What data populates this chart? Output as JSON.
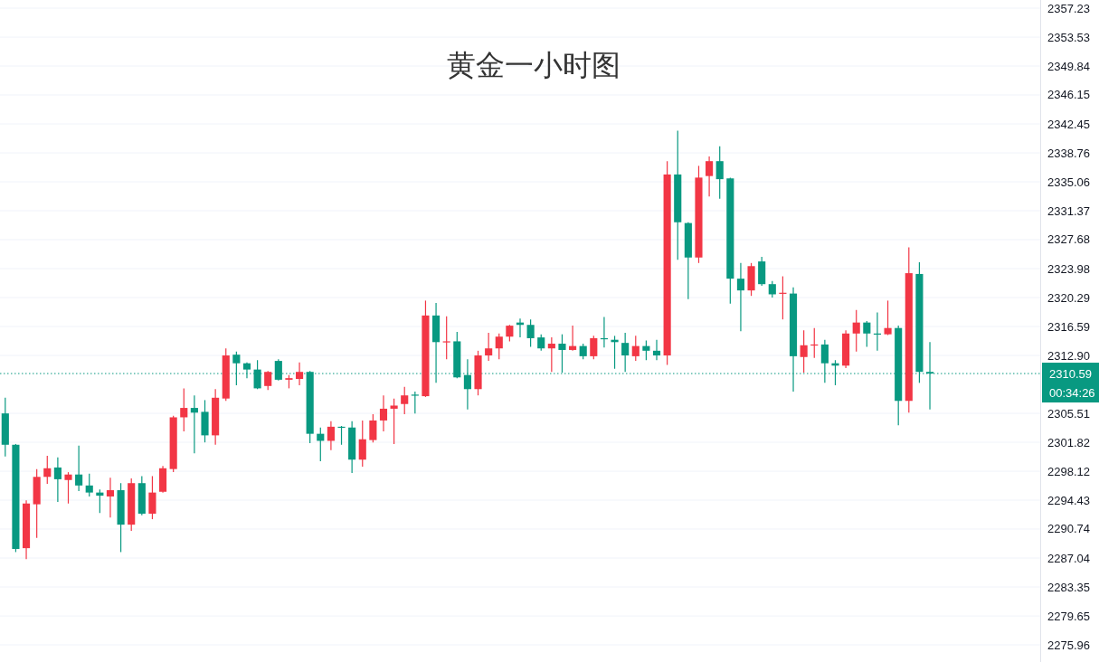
{
  "chart_data": {
    "type": "candlestick",
    "title": "黄金一小时图",
    "categories": [
      null,
      null,
      null,
      null,
      null,
      null,
      null,
      null,
      null,
      null,
      null,
      null,
      null,
      null,
      null,
      null,
      null,
      null,
      null,
      null,
      null,
      null,
      null,
      null,
      null,
      null,
      null,
      null,
      null,
      null,
      null,
      null,
      null,
      null,
      null,
      null,
      null,
      null,
      null,
      null,
      null,
      null,
      null,
      null,
      null,
      null,
      null,
      null,
      null,
      null,
      null,
      null,
      null,
      null,
      null,
      null,
      null,
      null,
      null,
      null,
      null,
      null,
      null,
      null,
      null,
      null,
      null,
      null,
      null,
      null,
      null,
      null,
      null,
      null,
      null,
      null,
      null,
      null,
      null,
      null,
      null,
      null,
      null,
      null,
      null,
      null,
      null,
      null,
      null,
      null,
      null,
      null,
      null,
      null,
      null,
      null,
      null,
      null,
      null
    ],
    "ohlc": [
      [
        2305.5,
        2307.5,
        2300.0,
        2301.5
      ],
      [
        2301.5,
        2301.6,
        2287.8,
        2288.2
      ],
      [
        2288.3,
        2294.4,
        2286.9,
        2294.0
      ],
      [
        2293.9,
        2298.4,
        2289.6,
        2297.4
      ],
      [
        2297.4,
        2300.1,
        2296.5,
        2298.5
      ],
      [
        2298.6,
        2299.9,
        2294.2,
        2297.1
      ],
      [
        2297.0,
        2298.0,
        2294.0,
        2297.7
      ],
      [
        2297.7,
        2301.4,
        2295.6,
        2296.3
      ],
      [
        2296.3,
        2297.8,
        2294.9,
        2295.4
      ],
      [
        2295.4,
        2295.8,
        2292.8,
        2295.0
      ],
      [
        2294.9,
        2297.3,
        2292.2,
        2295.7
      ],
      [
        2295.7,
        2296.6,
        2287.8,
        2291.3
      ],
      [
        2291.3,
        2297.2,
        2290.5,
        2296.6
      ],
      [
        2296.6,
        2297.5,
        2292.5,
        2292.7
      ],
      [
        2292.7,
        2297.5,
        2292.0,
        2295.4
      ],
      [
        2295.5,
        2298.8,
        2295.4,
        2298.5
      ],
      [
        2298.4,
        2305.2,
        2298.0,
        2305.0
      ],
      [
        2305.0,
        2308.7,
        2303.2,
        2306.2
      ],
      [
        2306.2,
        2307.8,
        2300.4,
        2305.6
      ],
      [
        2305.7,
        2307.2,
        2301.8,
        2302.7
      ],
      [
        2302.7,
        2308.6,
        2301.5,
        2307.5
      ],
      [
        2307.4,
        2313.8,
        2307.1,
        2312.9
      ],
      [
        2313.0,
        2313.4,
        2309.1,
        2311.9
      ],
      [
        2311.9,
        2312.0,
        2310.0,
        2311.1
      ],
      [
        2311.1,
        2312.3,
        2308.6,
        2308.7
      ],
      [
        2309.0,
        2310.9,
        2308.5,
        2310.8
      ],
      [
        2312.2,
        2312.4,
        2309.7,
        2309.8
      ],
      [
        2309.8,
        2310.4,
        2308.7,
        2310.0
      ],
      [
        2309.9,
        2312.0,
        2309.1,
        2310.8
      ],
      [
        2310.8,
        2310.9,
        2301.7,
        2302.9
      ],
      [
        2302.9,
        2303.7,
        2299.4,
        2302.0
      ],
      [
        2302.0,
        2304.5,
        2300.8,
        2303.8
      ],
      [
        2303.8,
        2303.9,
        2301.5,
        2303.7
      ],
      [
        2303.7,
        2304.5,
        2297.9,
        2299.6
      ],
      [
        2299.6,
        2304.6,
        2298.7,
        2302.2
      ],
      [
        2302.1,
        2305.4,
        2301.8,
        2304.6
      ],
      [
        2304.6,
        2307.8,
        2303.2,
        2306.1
      ],
      [
        2306.1,
        2307.4,
        2301.6,
        2306.5
      ],
      [
        2306.7,
        2308.9,
        2305.4,
        2307.8
      ],
      [
        2307.9,
        2308.3,
        2305.5,
        2307.8
      ],
      [
        2307.7,
        2319.9,
        2307.6,
        2318.0
      ],
      [
        2318.0,
        2319.6,
        2309.4,
        2314.6
      ],
      [
        2314.6,
        2317.9,
        2312.4,
        2314.7
      ],
      [
        2314.7,
        2315.9,
        2310.0,
        2310.1
      ],
      [
        2310.4,
        2312.4,
        2306.0,
        2308.6
      ],
      [
        2308.6,
        2313.5,
        2307.8,
        2312.9
      ],
      [
        2312.9,
        2315.8,
        2312.2,
        2313.8
      ],
      [
        2313.8,
        2315.7,
        2312.4,
        2315.3
      ],
      [
        2315.3,
        2316.8,
        2314.7,
        2316.7
      ],
      [
        2317.1,
        2317.6,
        2315.2,
        2316.8
      ],
      [
        2316.8,
        2317.5,
        2314.0,
        2315.1
      ],
      [
        2315.2,
        2315.6,
        2313.5,
        2313.8
      ],
      [
        2313.8,
        2315.2,
        2310.8,
        2314.4
      ],
      [
        2314.4,
        2315.6,
        2310.7,
        2313.6
      ],
      [
        2313.6,
        2316.7,
        2313.5,
        2314.1
      ],
      [
        2314.1,
        2314.4,
        2312.4,
        2312.8
      ],
      [
        2312.8,
        2315.4,
        2312.4,
        2315.1
      ],
      [
        2315.1,
        2317.8,
        2313.9,
        2315.0
      ],
      [
        2314.9,
        2315.4,
        2311.2,
        2314.6
      ],
      [
        2314.5,
        2315.8,
        2310.8,
        2312.9
      ],
      [
        2312.8,
        2315.4,
        2312.2,
        2314.1
      ],
      [
        2314.1,
        2314.8,
        2312.3,
        2313.5
      ],
      [
        2313.5,
        2314.9,
        2312.3,
        2312.9
      ],
      [
        2312.9,
        2337.7,
        2311.7,
        2336.0
      ],
      [
        2336.0,
        2341.6,
        2325.1,
        2329.9
      ],
      [
        2329.8,
        2329.9,
        2320.1,
        2325.4
      ],
      [
        2325.4,
        2337.1,
        2324.7,
        2335.6
      ],
      [
        2335.8,
        2338.3,
        2333.2,
        2337.7
      ],
      [
        2337.7,
        2339.6,
        2332.9,
        2335.4
      ],
      [
        2335.5,
        2335.6,
        2319.5,
        2322.7
      ],
      [
        2322.7,
        2324.7,
        2316.0,
        2321.2
      ],
      [
        2321.2,
        2324.7,
        2320.5,
        2324.3
      ],
      [
        2324.9,
        2325.5,
        2321.8,
        2322.0
      ],
      [
        2322.0,
        2322.4,
        2320.3,
        2320.7
      ],
      [
        2320.8,
        2323.0,
        2317.5,
        2320.9
      ],
      [
        2320.8,
        2321.6,
        2308.3,
        2312.8
      ],
      [
        2312.7,
        2316.1,
        2310.7,
        2314.2
      ],
      [
        2314.2,
        2316.4,
        2312.6,
        2314.3
      ],
      [
        2314.3,
        2314.9,
        2309.4,
        2311.9
      ],
      [
        2311.9,
        2312.3,
        2309.1,
        2311.6
      ],
      [
        2311.6,
        2316.1,
        2311.3,
        2315.7
      ],
      [
        2315.7,
        2318.7,
        2313.4,
        2317.1
      ],
      [
        2317.1,
        2317.3,
        2314.0,
        2315.7
      ],
      [
        2315.7,
        2318.4,
        2313.5,
        2315.6
      ],
      [
        2315.6,
        2319.9,
        2315.5,
        2316.4
      ],
      [
        2316.4,
        2316.7,
        2304.0,
        2307.1
      ],
      [
        2307.1,
        2326.7,
        2305.6,
        2323.4
      ],
      [
        2323.3,
        2324.8,
        2309.4,
        2310.8
      ],
      [
        2310.8,
        2314.6,
        2306.0,
        2310.59
      ],
      null,
      null,
      null,
      null,
      null,
      null,
      null,
      null,
      null,
      null
    ],
    "colors": [
      "#089981",
      "#089981",
      "#f23645",
      "#f23645",
      "#f23645",
      "#089981",
      "#f23645",
      "#089981",
      "#089981",
      "#089981",
      "#f23645",
      "#089981",
      "#f23645",
      "#089981",
      "#f23645",
      "#f23645",
      "#f23645",
      "#f23645",
      "#089981",
      "#089981",
      "#f23645",
      "#f23645",
      "#089981",
      "#089981",
      "#089981",
      "#f23645",
      "#089981",
      "#f23645",
      "#f23645",
      "#089981",
      "#089981",
      "#f23645",
      "#089981",
      "#089981",
      "#f23645",
      "#f23645",
      "#f23645",
      "#f23645",
      "#f23645",
      "#089981",
      "#f23645",
      "#089981",
      "#f23645",
      "#089981",
      "#089981",
      "#f23645",
      "#f23645",
      "#f23645",
      "#f23645",
      "#089981",
      "#089981",
      "#089981",
      "#f23645",
      "#089981",
      "#f23645",
      "#089981",
      "#f23645",
      "#089981",
      "#089981",
      "#089981",
      "#f23645",
      "#089981",
      "#089981",
      "#f23645",
      "#089981",
      "#089981",
      "#f23645",
      "#f23645",
      "#089981",
      "#089981",
      "#089981",
      "#f23645",
      "#089981",
      "#089981",
      "#f23645",
      "#089981",
      "#f23645",
      "#f23645",
      "#089981",
      "#089981",
      "#f23645",
      "#f23645",
      "#089981",
      "#089981",
      "#f23645",
      "#089981",
      "#f23645",
      "#089981",
      "#089981",
      null,
      null,
      null,
      null,
      null,
      null,
      null,
      null,
      null,
      null
    ],
    "ylim": [
      2273.77,
      2358.27
    ],
    "yticks": [
      2357.23,
      2353.53,
      2349.84,
      2346.15,
      2342.45,
      2338.76,
      2335.06,
      2331.37,
      2327.68,
      2323.98,
      2320.29,
      2316.59,
      {
        "value": 2312.9,
        "label": "2312.90"
      },
      2305.51,
      2301.82,
      2298.12,
      2294.43,
      2290.74,
      2287.04,
      2283.35,
      2279.65,
      2275.96
    ],
    "ref_lines": [
      {
        "axis": "y",
        "value": 2310.59,
        "label": "2310.59",
        "color": "#089981",
        "line_style": "dotted"
      }
    ],
    "annotations": [
      "00:34:26"
    ],
    "grid": "y",
    "tick_labels": "y"
  }
}
